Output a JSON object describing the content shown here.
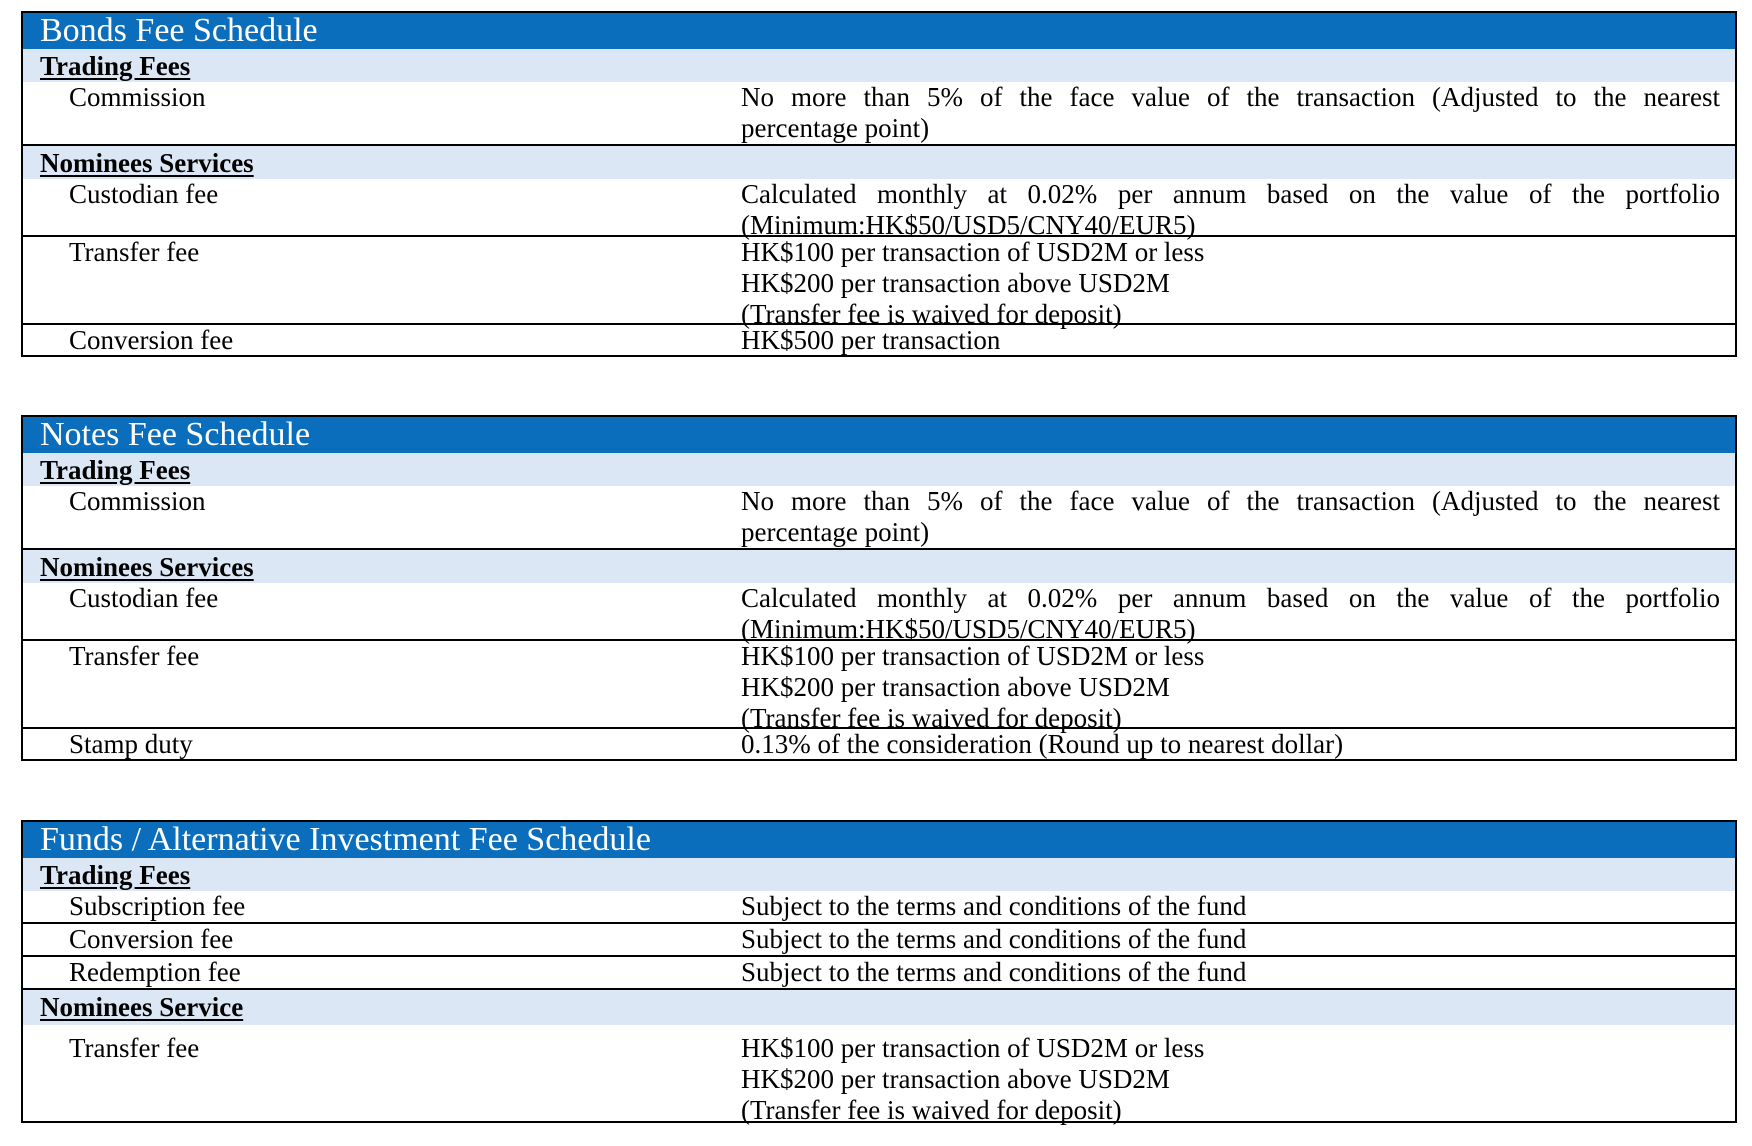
{
  "bonds": {
    "title": "Bonds Fee Schedule",
    "trading_header": "Trading Fees",
    "commission_label": "Commission",
    "commission_line1": "No more than 5% of the face value of the transaction (Adjusted to the nearest",
    "commission_line2": "percentage point)",
    "nominees_header": "Nominees Services",
    "custodian_label": "Custodian fee",
    "custodian_line1": "Calculated monthly at 0.02% per annum based on the value of the portfolio",
    "custodian_line2": "(Minimum:HK$50/USD5/CNY40/EUR5)",
    "transfer_label": "Transfer fee",
    "transfer_line1": "HK$100 per transaction of USD2M or less",
    "transfer_line2": "HK$200 per transaction above USD2M",
    "transfer_line3": "(Transfer fee is waived for deposit)",
    "conversion_label": "Conversion fee",
    "conversion_value": "HK$500 per transaction"
  },
  "notes": {
    "title": "Notes Fee Schedule",
    "trading_header": "Trading Fees",
    "commission_label": "Commission",
    "commission_line1": "No more than 5% of the face value of the transaction (Adjusted to the nearest",
    "commission_line2": "percentage point)",
    "nominees_header": "Nominees Services",
    "custodian_label": "Custodian fee",
    "custodian_line1": "Calculated monthly at 0.02% per annum based on the value of the portfolio",
    "custodian_line2": "(Minimum:HK$50/USD5/CNY40/EUR5)",
    "transfer_label": "Transfer fee",
    "transfer_line1": "HK$100 per transaction of USD2M or less",
    "transfer_line2": "HK$200 per transaction above USD2M",
    "transfer_line3": "(Transfer fee is waived for deposit)",
    "stamp_label": "Stamp duty",
    "stamp_value": "0.13% of the consideration (Round up to nearest dollar)"
  },
  "funds": {
    "title": "Funds / Alternative Investment Fee Schedule",
    "trading_header": "Trading Fees",
    "subscription_label": "Subscription fee",
    "subscription_value": "Subject to the terms and conditions of the fund",
    "conversion_label": "Conversion fee",
    "conversion_value": "Subject to the terms and conditions of the fund",
    "redemption_label": "Redemption fee",
    "redemption_value": "Subject to the terms and conditions of the fund",
    "nominees_header": "Nominees Service",
    "transfer_label": "Transfer fee",
    "transfer_line1": "HK$100 per transaction of USD2M or less",
    "transfer_line2": "HK$200 per transaction above USD2M",
    "transfer_line3": "(Transfer fee is waived for deposit)"
  },
  "colors": {
    "title_bar": "#0a6ebd",
    "section_band": "#dbe7f4",
    "border": "#000000"
  }
}
